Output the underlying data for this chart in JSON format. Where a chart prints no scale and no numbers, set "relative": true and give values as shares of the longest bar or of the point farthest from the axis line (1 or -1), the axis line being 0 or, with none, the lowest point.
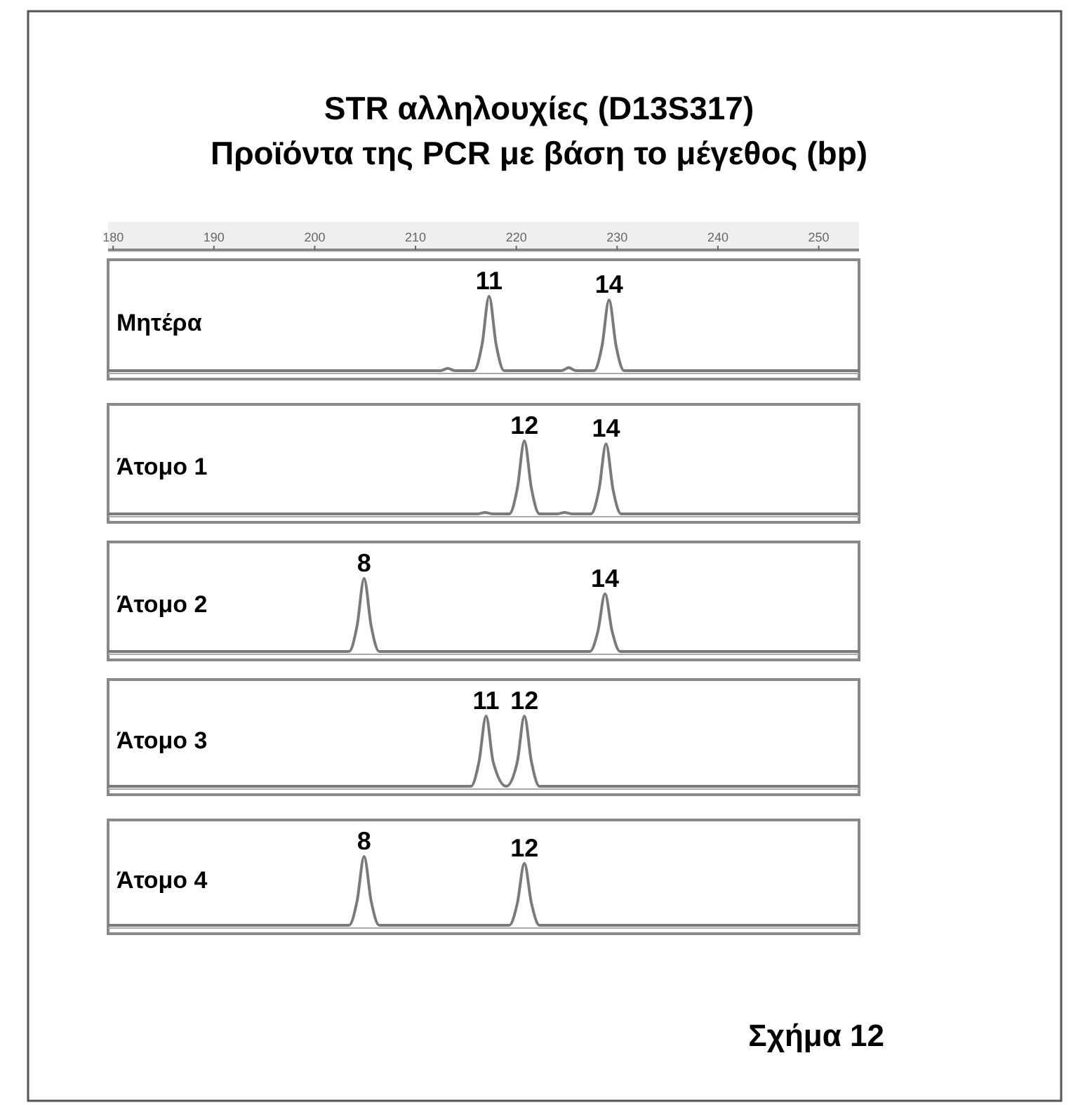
{
  "chart_data": [
    {
      "type": "line",
      "title": "STR αλληλουχίες (D13S317)",
      "subtitle": "Προϊόντα της PCR με βάση το μέγεθος (bp)",
      "relative": true,
      "xlim": [
        179.5,
        254
      ],
      "xticks": [
        180,
        190,
        200,
        210,
        220,
        230,
        240,
        250
      ],
      "tick_labels": "x",
      "x": [
        179.5,
        212.5,
        213.2,
        213.9,
        215.8,
        216.6,
        217.3,
        218.0,
        218.8,
        224.5,
        225.2,
        225.9,
        227.7,
        228.5,
        229.2,
        229.9,
        230.7,
        254
      ],
      "series": [
        {
          "name": "Μητέρα",
          "color": "#7a7a7a",
          "values": [
            0,
            0,
            0.03,
            0,
            0,
            0.35,
            1,
            0.35,
            0,
            0,
            0.04,
            0,
            0,
            0.33,
            0.95,
            0.33,
            0,
            0
          ]
        }
      ],
      "annotations": [
        {
          "text": "11",
          "x": 217.3,
          "y": 1
        },
        {
          "text": "14",
          "x": 229.2,
          "y": 0.95
        }
      ]
    },
    {
      "type": "line",
      "relative": true,
      "xlim": [
        179.5,
        254
      ],
      "tick_labels": false,
      "x": [
        179.5,
        216.2,
        216.9,
        217.6,
        219.3,
        220.1,
        220.8,
        221.5,
        222.3,
        224.1,
        224.8,
        225.5,
        227.4,
        228.2,
        228.9,
        229.6,
        230.4,
        254
      ],
      "series": [
        {
          "name": "Άτομο 1",
          "color": "#7a7a7a",
          "values": [
            0,
            0,
            0.02,
            0,
            0,
            0.35,
            1,
            0.35,
            0,
            0,
            0.02,
            0,
            0,
            0.33,
            0.96,
            0.33,
            0,
            0
          ]
        }
      ],
      "annotations": [
        {
          "text": "12",
          "x": 220.8,
          "y": 1
        },
        {
          "text": "14",
          "x": 228.9,
          "y": 0.96
        }
      ]
    },
    {
      "type": "line",
      "relative": true,
      "xlim": [
        179.5,
        254
      ],
      "tick_labels": false,
      "x": [
        179.5,
        203.4,
        204.2,
        204.9,
        205.6,
        206.4,
        227.3,
        228.1,
        228.8,
        229.5,
        230.3,
        254
      ],
      "series": [
        {
          "name": "Άτομο 2",
          "color": "#7a7a7a",
          "values": [
            0,
            0,
            0.35,
            1,
            0.35,
            0,
            0,
            0.28,
            0.79,
            0.28,
            0,
            0
          ]
        }
      ],
      "annotations": [
        {
          "text": "8",
          "x": 204.9,
          "y": 1
        },
        {
          "text": "14",
          "x": 228.8,
          "y": 0.79
        }
      ]
    },
    {
      "type": "line",
      "relative": true,
      "xlim": [
        179.5,
        254
      ],
      "tick_labels": false,
      "x": [
        179.5,
        215.5,
        216.3,
        217,
        217.7,
        219,
        220.1,
        220.8,
        221.5,
        222.3,
        254
      ],
      "series": [
        {
          "name": "Άτομο 3",
          "color": "#7a7a7a",
          "values": [
            0,
            0,
            0.35,
            1,
            0.35,
            0,
            0.35,
            1,
            0.35,
            0,
            0
          ]
        }
      ],
      "annotations": [
        {
          "text": "11",
          "x": 217,
          "y": 1
        },
        {
          "text": "12",
          "x": 220.8,
          "y": 1
        }
      ]
    },
    {
      "type": "line",
      "relative": true,
      "xlim": [
        179.5,
        254
      ],
      "tick_labels": false,
      "x": [
        179.5,
        203.4,
        204.2,
        204.9,
        205.6,
        206.4,
        219.3,
        220.1,
        220.8,
        221.5,
        222.3,
        254
      ],
      "series": [
        {
          "name": "Άτομο 4",
          "color": "#7a7a7a",
          "values": [
            0,
            0,
            0.35,
            1,
            0.35,
            0,
            0,
            0.32,
            0.9,
            0.32,
            0,
            0
          ]
        }
      ],
      "annotations": [
        {
          "text": "8",
          "x": 204.9,
          "y": 1
        },
        {
          "text": "12",
          "x": 220.8,
          "y": 0.9
        },
        "Σχήμα 12"
      ]
    }
  ]
}
